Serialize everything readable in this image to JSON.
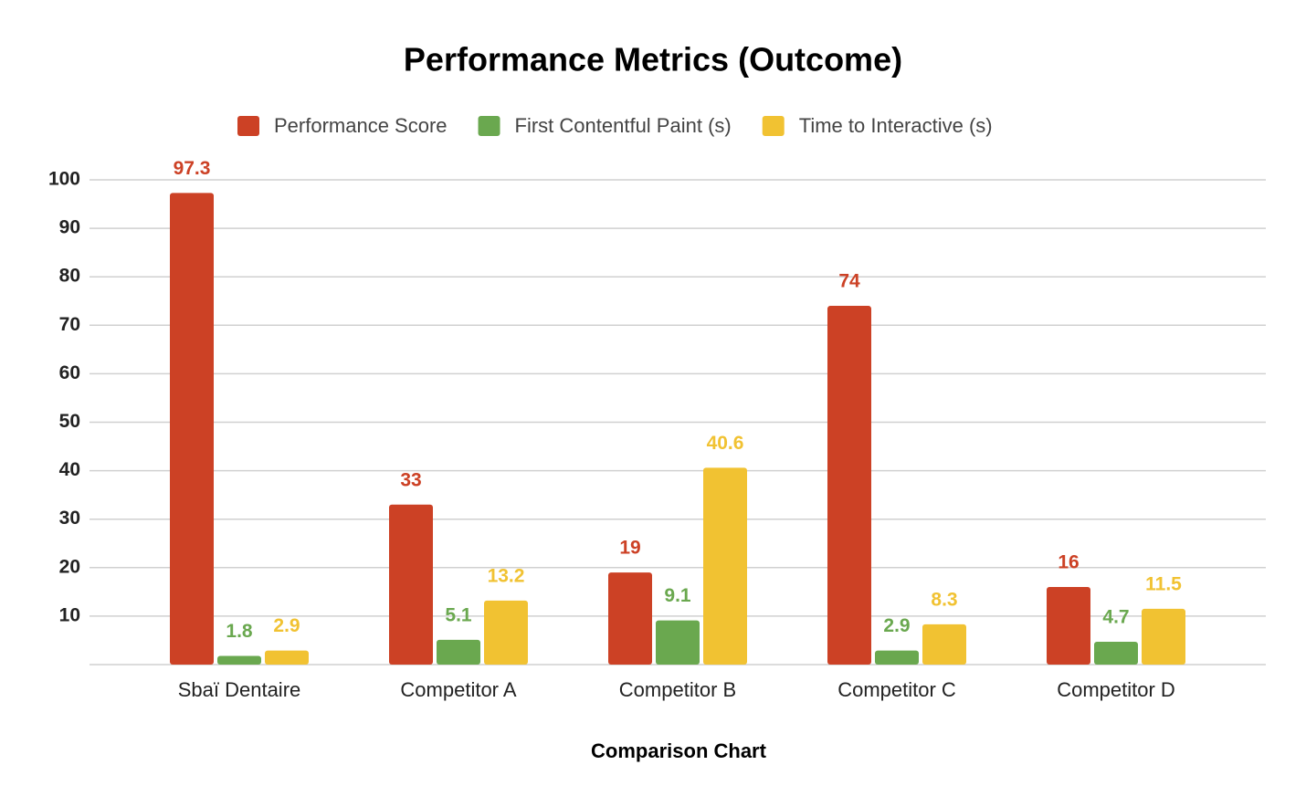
{
  "chart_data": {
    "type": "bar",
    "title": "Performance Metrics (Outcome)",
    "x_label": "Comparison Chart",
    "categories": [
      "Sbaï Dentaire",
      "Competitor A",
      "Competitor B",
      "Competitor C",
      "Competitor D"
    ],
    "series": [
      {
        "name": "Performance Score",
        "color": "#cc4125",
        "values": [
          97.3,
          33,
          19,
          74,
          16
        ]
      },
      {
        "name": "First Contentful Paint (s)",
        "color": "#6aa84f",
        "values": [
          1.8,
          5.1,
          9.1,
          2.9,
          4.7
        ]
      },
      {
        "name": "Time to Interactive (s)",
        "color": "#f1c232",
        "values": [
          2.9,
          13.2,
          40.6,
          8.3,
          11.5
        ]
      }
    ],
    "ylim": [
      0,
      100
    ],
    "yticks": [
      10,
      20,
      30,
      40,
      50,
      60,
      70,
      80,
      90,
      100
    ],
    "grid": true,
    "legend": "top"
  }
}
